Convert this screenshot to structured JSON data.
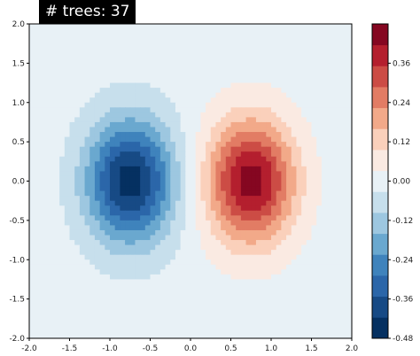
{
  "chart_data": {
    "type": "heatmap",
    "title": "# trees: 37",
    "xlim": [
      -2.0,
      2.0
    ],
    "ylim": [
      -2.0,
      2.0
    ],
    "x_ticks": [
      "-2.0",
      "-1.5",
      "-1.0",
      "-0.5",
      "0.0",
      "0.5",
      "1.0",
      "1.5",
      "2.0"
    ],
    "y_ticks": [
      "2.0",
      "1.5",
      "1.0",
      "0.5",
      "0.0",
      "-0.5",
      "-1.0",
      "-1.5",
      "-2.0"
    ],
    "colorbar": {
      "range": [
        -0.48,
        0.48
      ],
      "ticks": [
        "0.36",
        "0.24",
        "0.12",
        "0.00",
        "-0.12",
        "-0.24",
        "-0.36",
        "-0.48"
      ],
      "colors": [
        "#053061",
        "#174a85",
        "#2b66a9",
        "#3f83bc",
        "#6aa8cf",
        "#9dc7e0",
        "#c7dfec",
        "#e8f1f6",
        "#faeae2",
        "#fad0bb",
        "#f2a989",
        "#e27c64",
        "#cc4c45",
        "#b41f2e",
        "#850721"
      ]
    },
    "blobs": [
      {
        "center": [
          -0.75,
          0.0
        ],
        "peak": -0.45,
        "sigma_x": 0.38,
        "sigma_y": 0.55
      },
      {
        "center": [
          0.75,
          0.0
        ],
        "peak": 0.45,
        "sigma_x": 0.38,
        "sigma_y": 0.55
      }
    ]
  }
}
